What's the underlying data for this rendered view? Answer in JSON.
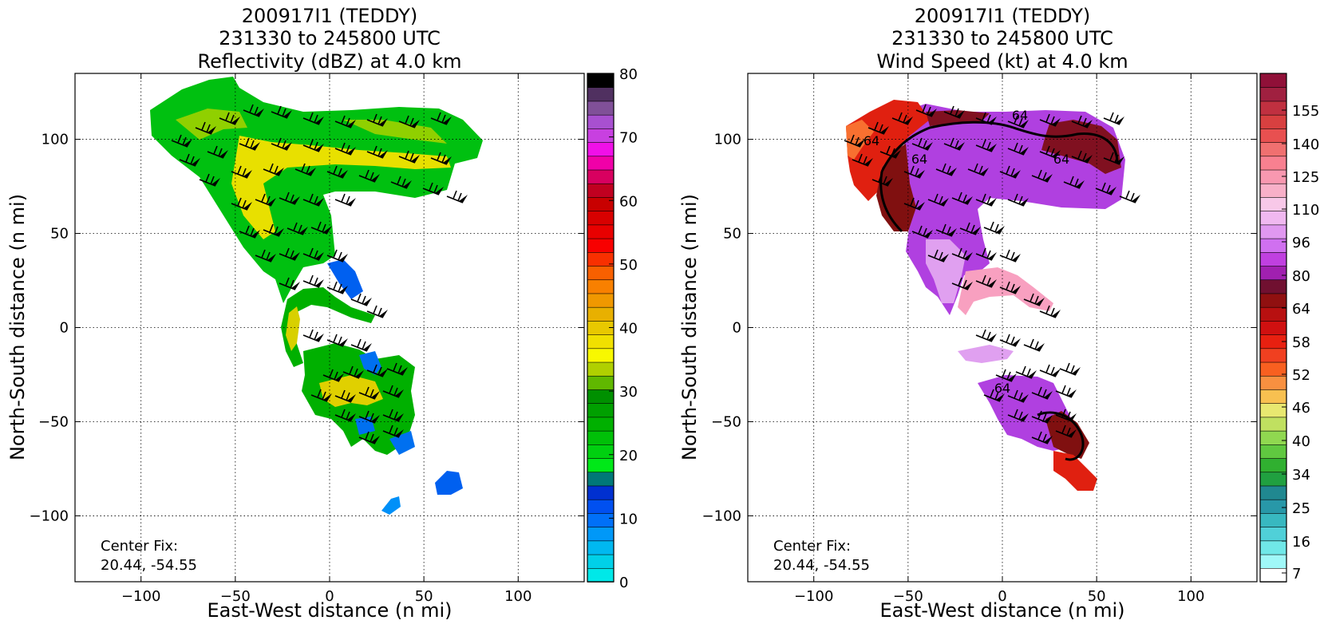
{
  "panels": [
    {
      "id": "reflectivity",
      "title": [
        "200917I1 (TEDDY)",
        "231330 to 245800 UTC",
        "Reflectivity (dBZ) at 4.0 km"
      ],
      "xlabel": "East-West distance (n mi)",
      "ylabel": "North-South distance (n mi)",
      "center_fix_label": "Center Fix:",
      "center_fix_value": "20.44, -54.55",
      "colorbar": {
        "ticks": [
          "0",
          "10",
          "20",
          "30",
          "40",
          "50",
          "60",
          "70",
          "80"
        ],
        "colors": [
          "#00e8e8",
          "#00d0e8",
          "#00b8f0",
          "#0098f8",
          "#0070f8",
          "#0050f0",
          "#0030d0",
          "#007878",
          "#00e818",
          "#00d010",
          "#00c008",
          "#00b000",
          "#00a000",
          "#009000",
          "#60b800",
          "#b0d000",
          "#f8f800",
          "#f0e000",
          "#e8c800",
          "#e8b000",
          "#f09800",
          "#f88000",
          "#f86000",
          "#f83000",
          "#f80000",
          "#e80000",
          "#d80000",
          "#c80000",
          "#c00020",
          "#d80060",
          "#f000a8",
          "#f010e8",
          "#c840e0",
          "#a850d0",
          "#805098",
          "#503060",
          "#000000"
        ]
      },
      "chart_data": {
        "type": "heatmap",
        "variable": "Reflectivity (dBZ) at 4.0 km",
        "xlim": [
          -135,
          135
        ],
        "ylim": [
          -135,
          135
        ],
        "xticks": [
          -100,
          -50,
          0,
          50,
          100
        ],
        "yticks": [
          -100,
          -50,
          0,
          50,
          100
        ],
        "grid": true,
        "color_range": [
          0,
          80
        ],
        "center_fix": [
          20.44,
          -54.55
        ]
      }
    },
    {
      "id": "wind",
      "title": [
        "200917I1 (TEDDY)",
        "231330 to 245800 UTC",
        "Wind Speed (kt) at 4.0 km"
      ],
      "xlabel": "East-West distance (n mi)",
      "ylabel": "North-South distance (n mi)",
      "center_fix_label": "Center Fix:",
      "center_fix_value": "20.44, -54.55",
      "colorbar": {
        "ticks": [
          "7",
          "16",
          "25",
          "34",
          "40",
          "46",
          "52",
          "58",
          "64",
          "80",
          "96",
          "110",
          "125",
          "140",
          "155"
        ],
        "colors": [
          "#ffffff",
          "#a0f8f8",
          "#70e8e8",
          "#50d0d8",
          "#38b8c0",
          "#2898a8",
          "#208890",
          "#20a040",
          "#30b030",
          "#60c840",
          "#90d850",
          "#c0e060",
          "#e8e870",
          "#f8c050",
          "#f89040",
          "#f86020",
          "#f04020",
          "#e82010",
          "#d01010",
          "#b81010",
          "#901010",
          "#701030",
          "#a020b0",
          "#c040e0",
          "#d070f0",
          "#e098f0",
          "#f0b8f0",
          "#f8c8e8",
          "#f8b0c8",
          "#f898b0",
          "#f88090",
          "#f07070",
          "#e85050",
          "#d84040",
          "#c03040",
          "#a02040",
          "#901038"
        ]
      },
      "chart_data": {
        "type": "heatmap",
        "variable": "Wind Speed (kt) at 4.0 km",
        "xlim": [
          -135,
          135
        ],
        "ylim": [
          -135,
          135
        ],
        "xticks": [
          -100,
          -50,
          0,
          50,
          100
        ],
        "yticks": [
          -100,
          -50,
          0,
          50,
          100
        ],
        "grid": true,
        "color_range": [
          7,
          160
        ],
        "contour_level": 64,
        "contour_labels": [
          "64",
          "64",
          "64",
          "64",
          "64"
        ],
        "center_fix": [
          20.44,
          -54.55
        ]
      }
    }
  ]
}
